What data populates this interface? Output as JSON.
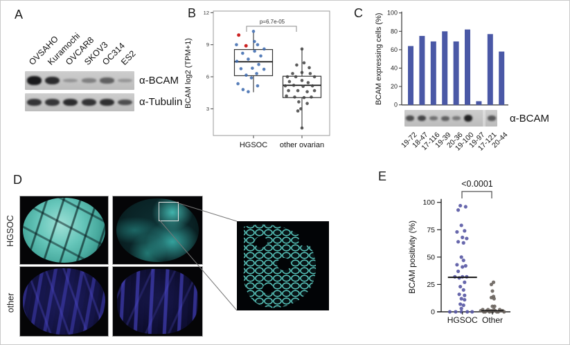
{
  "panels": {
    "a": {
      "letter": "A",
      "lanes": [
        "OVSAHO",
        "Kuramochi",
        "OVCAR8",
        "SKOV3",
        "OC314",
        "ES2"
      ],
      "blots": [
        {
          "label": "α-BCAM",
          "bands": [
            0.97,
            0.85,
            0.15,
            0.28,
            0.5,
            0.13
          ]
        },
        {
          "label": "α-Tubulin",
          "bands": [
            0.8,
            0.78,
            0.85,
            0.8,
            0.82,
            0.62
          ]
        }
      ]
    },
    "b": {
      "letter": "B"
    },
    "c": {
      "letter": "C",
      "blot_label": "α-BCAM",
      "blot_bands": [
        0.62,
        0.68,
        0.38,
        0.5,
        0.33,
        0.92,
        0,
        0.55
      ]
    },
    "d": {
      "letter": "D",
      "row_labels": [
        "HGSOC",
        "other"
      ]
    },
    "e": {
      "letter": "E"
    }
  },
  "colors": {
    "bar_blue": "#4a58a6",
    "point_blue": "#3a67ad",
    "point_red": "#cc2222",
    "scatter_purple": "#5a5aa5",
    "scatter_gray": "#6b6560",
    "stain_cyan": "#5ed2c8",
    "stain_navy": "#3a3aa8"
  },
  "chart_data": [
    {
      "id": "panel-b",
      "type": "boxplot",
      "title": "",
      "ylabel": "BCAM log2 (TPM+1)",
      "yticks": [
        3,
        6,
        9,
        12
      ],
      "ylim": [
        0.5,
        12.15
      ],
      "grid": false,
      "annotation": "p=6.7e-05",
      "categories": [
        "HGSOC",
        "other ovarian"
      ],
      "series": [
        {
          "name": "HGSOC",
          "point_color": "#3a67ad",
          "box": {
            "whisker_low": 4.55,
            "q1": 6.1,
            "median": 7.4,
            "q3": 8.55,
            "whisker_high": 10.15
          },
          "points": [
            [
              -0.91,
              9.0
            ],
            [
              0.0,
              10.25
            ],
            [
              0.05,
              9.3
            ],
            [
              0.22,
              9.0
            ],
            [
              0.57,
              8.6
            ],
            [
              -0.58,
              8.2
            ],
            [
              0.06,
              8.4
            ],
            [
              0.39,
              7.95
            ],
            [
              -0.89,
              7.45
            ],
            [
              -0.28,
              7.65
            ],
            [
              0.28,
              7.15
            ],
            [
              -0.67,
              6.75
            ],
            [
              -0.06,
              6.8
            ],
            [
              0.56,
              6.7
            ],
            [
              -0.39,
              6.15
            ],
            [
              0.17,
              6.3
            ],
            [
              -0.11,
              5.9
            ],
            [
              -0.83,
              5.35
            ],
            [
              0.22,
              5.15
            ],
            [
              -0.56,
              4.8
            ],
            [
              -0.28,
              4.6
            ]
          ],
          "outlier_color": "#cc2222",
          "outliers": [
            [
              -0.79,
              9.9
            ],
            [
              -0.4,
              8.9
            ]
          ]
        },
        {
          "name": "other ovarian",
          "point_color": "#3f3f3f",
          "box": {
            "whisker_low": 1.2,
            "q1": 4.05,
            "median": 5.2,
            "q3": 6.05,
            "whisker_high": 8.6
          },
          "points": [
            [
              0,
              8.6
            ],
            [
              -0.28,
              7.1
            ],
            [
              0.11,
              7.3
            ],
            [
              0.39,
              6.85
            ],
            [
              -0.5,
              6.3
            ],
            [
              0,
              6.4
            ],
            [
              0.44,
              6.3
            ],
            [
              -0.78,
              6.0
            ],
            [
              -0.33,
              6.0
            ],
            [
              0.67,
              6.0
            ],
            [
              -0.67,
              5.55
            ],
            [
              0,
              5.65
            ],
            [
              0.33,
              5.45
            ],
            [
              -0.89,
              5.15
            ],
            [
              -0.44,
              5.2
            ],
            [
              0.06,
              5.1
            ],
            [
              0.56,
              5.15
            ],
            [
              -0.72,
              4.7
            ],
            [
              -0.22,
              4.7
            ],
            [
              0.28,
              4.6
            ],
            [
              0.67,
              4.7
            ],
            [
              -0.83,
              4.2
            ],
            [
              -0.39,
              4.1
            ],
            [
              0.11,
              4.05
            ],
            [
              0.5,
              4.1
            ],
            [
              -0.17,
              3.65
            ],
            [
              0.28,
              3.5
            ],
            [
              -0.06,
              3.0
            ],
            [
              -0.22,
              2.8
            ],
            [
              0,
              1.2
            ]
          ]
        }
      ]
    },
    {
      "id": "panel-c",
      "type": "bar",
      "title": "",
      "ylabel": "BCAM expressing cells (%)",
      "yticks": [
        0,
        20,
        40,
        60,
        80,
        100
      ],
      "ylim": [
        0,
        100
      ],
      "grid": false,
      "categories": [
        "19-72",
        "18-47",
        "17-116",
        "19-39",
        "20-36",
        "19-100",
        "19-97",
        "17-121",
        "20-44"
      ],
      "values": [
        64,
        75,
        69,
        80,
        69,
        82,
        4,
        77,
        58
      ],
      "bar_color": "#4a58a6"
    },
    {
      "id": "panel-e",
      "type": "scatter",
      "title": "",
      "ylabel": "BCAM positivity (%)",
      "yticks": [
        0,
        25,
        50,
        75,
        100
      ],
      "ylim": [
        0,
        100
      ],
      "grid": false,
      "annotation": "<0.0001",
      "categories": [
        "HGSOC",
        "Other"
      ],
      "series": [
        {
          "name": "HGSOC",
          "color": "#5a5aa5",
          "median": 31.5,
          "points": [
            [
              -0.22,
              97
            ],
            [
              0.33,
              96
            ],
            [
              -0.44,
              93
            ],
            [
              -0.11,
              79
            ],
            [
              0.22,
              74
            ],
            [
              -0.56,
              73
            ],
            [
              0.44,
              67
            ],
            [
              0,
              68
            ],
            [
              -0.44,
              64
            ],
            [
              0.11,
              63
            ],
            [
              -0.11,
              50
            ],
            [
              0.11,
              47
            ],
            [
              -0.56,
              43
            ],
            [
              0,
              41
            ],
            [
              0.33,
              42
            ],
            [
              -0.44,
              37
            ],
            [
              -0.78,
              32
            ],
            [
              -0.33,
              31
            ],
            [
              0,
              32
            ],
            [
              0.44,
              32
            ],
            [
              0.22,
              27
            ],
            [
              -0.22,
              23
            ],
            [
              0.11,
              20
            ],
            [
              -0.33,
              16
            ],
            [
              0.22,
              15
            ],
            [
              -0.11,
              12
            ],
            [
              0.22,
              11
            ],
            [
              -0.22,
              7
            ],
            [
              0.11,
              6
            ],
            [
              -0.11,
              3
            ],
            [
              -1.3,
              0
            ],
            [
              -0.7,
              0
            ],
            [
              -0.1,
              0
            ],
            [
              0.5,
              0
            ],
            [
              1.0,
              0
            ]
          ]
        },
        {
          "name": "Other",
          "color": "#6b6560",
          "median": 1,
          "points": [
            [
              0.11,
              27
            ],
            [
              -0.11,
              25
            ],
            [
              0,
              19
            ],
            [
              0.11,
              14
            ],
            [
              -0.11,
              13
            ],
            [
              0.17,
              12
            ],
            [
              0,
              5
            ],
            [
              0.22,
              5
            ],
            [
              -1.2,
              1
            ],
            [
              -0.9,
              0
            ],
            [
              -0.6,
              1
            ],
            [
              -0.3,
              0
            ],
            [
              0,
              0
            ],
            [
              0.3,
              1
            ],
            [
              0.6,
              0
            ],
            [
              0.9,
              1
            ],
            [
              1.2,
              0
            ],
            [
              -1.0,
              2
            ],
            [
              -0.45,
              2
            ],
            [
              0.15,
              2
            ],
            [
              0.75,
              2
            ],
            [
              -0.15,
              1
            ],
            [
              0.45,
              0
            ],
            [
              1.05,
              1
            ],
            [
              -0.75,
              0
            ]
          ]
        }
      ]
    }
  ]
}
